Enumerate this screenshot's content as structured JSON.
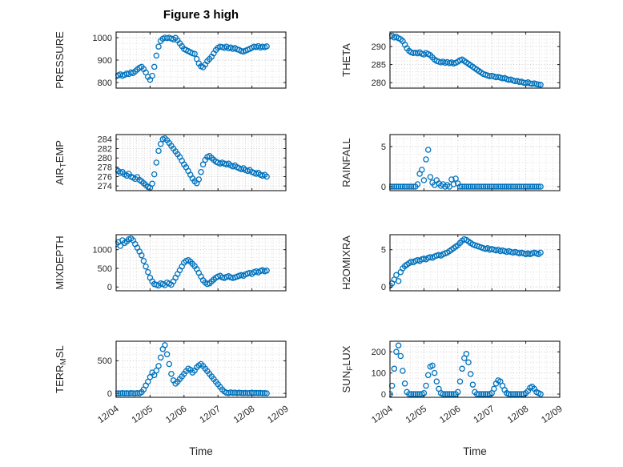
{
  "chart_data": {
    "type": "scatter",
    "figure_title": "Figure 3 high",
    "xlabel": "Time",
    "x_tick_labels": [
      "12/04",
      "12/05",
      "12/06",
      "12/07",
      "12/08",
      "12/09"
    ],
    "xlim": [
      0,
      5
    ],
    "x_start": 0,
    "x_step": 0.0625,
    "x_minor_step": 0.2,
    "grid": "on",
    "minor_grid": "on",
    "marker": "open-circle",
    "colors": {
      "marker": "#0072BD",
      "axis": "#151515",
      "text": "#262626",
      "grid_minor": "#dcdcdc",
      "grid_major": "#c6c6c6"
    },
    "plots": [
      {
        "name": "PRESSURE",
        "col": "left",
        "row": 0,
        "ylabel": "PRESSURE",
        "ylabel_parts": [
          {
            "text": "PRESSURE",
            "sub": false
          }
        ],
        "yticks": [
          800,
          900,
          1000
        ],
        "ylim": [
          775,
          1025
        ],
        "y_minor_step": 25,
        "values": [
          828,
          832,
          836,
          830,
          834,
          840,
          838,
          845,
          842,
          850,
          858,
          866,
          870,
          860,
          845,
          825,
          812,
          830,
          870,
          920,
          960,
          985,
          995,
          1000,
          998,
          1000,
          996,
          992,
          999,
          988,
          975,
          962,
          950,
          945,
          940,
          935,
          930,
          928,
          905,
          885,
          872,
          868,
          880,
          895,
          905,
          915,
          930,
          945,
          955,
          960,
          958,
          955,
          960,
          952,
          956,
          950,
          954,
          948,
          945,
          940,
          938,
          942,
          946,
          950,
          955,
          960,
          958,
          962,
          956,
          960,
          957,
          961
        ]
      },
      {
        "name": "AIR_TEMP",
        "col": "left",
        "row": 1,
        "ylabel": "AIR_TEMP",
        "ylabel_parts": [
          {
            "text": "AIR",
            "sub": false
          },
          {
            "text": "T",
            "sub": true
          },
          {
            "text": "EMP",
            "sub": false
          }
        ],
        "yticks": [
          274,
          276,
          278,
          280,
          282,
          284
        ],
        "ylim": [
          273,
          285
        ],
        "y_minor_step": 0.5,
        "values": [
          277.5,
          277.2,
          276.8,
          277.0,
          276.5,
          276.2,
          276.6,
          276.0,
          275.8,
          275.5,
          275.9,
          275.3,
          275.0,
          274.6,
          274.2,
          273.8,
          273.6,
          274.5,
          276.5,
          279.0,
          281.5,
          283.0,
          284.0,
          284.2,
          283.8,
          283.2,
          282.6,
          282.0,
          281.4,
          280.8,
          280.2,
          279.4,
          278.6,
          278.0,
          277.2,
          276.4,
          275.6,
          275.0,
          274.6,
          275.4,
          277.0,
          278.6,
          279.6,
          280.2,
          280.4,
          280.0,
          279.6,
          279.2,
          279.0,
          278.8,
          279.0,
          278.8,
          278.6,
          278.8,
          278.4,
          278.2,
          278.4,
          278.0,
          277.8,
          277.6,
          277.8,
          277.4,
          277.2,
          277.4,
          277.0,
          276.8,
          276.6,
          276.8,
          276.4,
          276.2,
          276.4,
          276.0
        ]
      },
      {
        "name": "MIXDEPTH",
        "col": "left",
        "row": 2,
        "ylabel": "MIXDEPTH",
        "ylabel_parts": [
          {
            "text": "MIXDEPTH",
            "sub": false
          }
        ],
        "yticks": [
          0,
          500,
          1000
        ],
        "ylim": [
          -100,
          1400
        ],
        "y_minor_step": 100,
        "values": [
          1150,
          1200,
          1100,
          1250,
          1180,
          1220,
          1280,
          1300,
          1250,
          1150,
          1050,
          950,
          850,
          700,
          550,
          400,
          250,
          150,
          80,
          60,
          40,
          100,
          80,
          50,
          120,
          90,
          60,
          150,
          250,
          350,
          450,
          550,
          650,
          700,
          720,
          680,
          620,
          560,
          480,
          380,
          280,
          180,
          120,
          80,
          100,
          150,
          200,
          250,
          280,
          300,
          260,
          240,
          270,
          290,
          260,
          240,
          260,
          280,
          300,
          320,
          300,
          340,
          360,
          380,
          350,
          400,
          420,
          390,
          430,
          450,
          420,
          440
        ]
      },
      {
        "name": "TERR_MSL",
        "col": "left",
        "row": 3,
        "ylabel": "TERR_MSL",
        "ylabel_parts": [
          {
            "text": "TERR",
            "sub": false
          },
          {
            "text": "M",
            "sub": true
          },
          {
            "text": "SL",
            "sub": false
          }
        ],
        "yticks": [
          0,
          500
        ],
        "ylim": [
          -60,
          800
        ],
        "y_minor_step": 100,
        "values": [
          0,
          2,
          0,
          5,
          0,
          3,
          0,
          4,
          2,
          0,
          5,
          0,
          20,
          60,
          120,
          180,
          250,
          320,
          280,
          350,
          420,
          550,
          680,
          740,
          600,
          450,
          300,
          200,
          150,
          180,
          220,
          260,
          300,
          340,
          380,
          360,
          320,
          350,
          400,
          430,
          450,
          420,
          380,
          340,
          300,
          260,
          220,
          180,
          140,
          100,
          60,
          30,
          10,
          5,
          15,
          8,
          12,
          5,
          10,
          6,
          4,
          8,
          3,
          6,
          10,
          5,
          8,
          4,
          7,
          3,
          5,
          2
        ]
      },
      {
        "name": "THETA",
        "col": "right",
        "row": 0,
        "ylabel": "THETA",
        "ylabel_parts": [
          {
            "text": "THETA",
            "sub": false
          }
        ],
        "yticks": [
          280,
          285,
          290
        ],
        "ylim": [
          278.5,
          294
        ],
        "y_minor_step": 1,
        "values": [
          292.8,
          293.0,
          292.5,
          292.7,
          292.3,
          292.0,
          291.5,
          290.5,
          289.5,
          288.8,
          288.4,
          288.2,
          288.3,
          288.1,
          288.4,
          288.0,
          287.8,
          288.2,
          287.9,
          287.6,
          287.0,
          286.4,
          286.0,
          285.8,
          285.6,
          285.8,
          285.5,
          285.7,
          285.4,
          285.6,
          285.3,
          285.5,
          285.8,
          286.2,
          286.4,
          286.0,
          285.6,
          285.2,
          284.8,
          284.4,
          284.0,
          283.6,
          283.2,
          282.8,
          282.4,
          282.2,
          282.0,
          281.8,
          281.9,
          281.7,
          281.5,
          281.6,
          281.4,
          281.2,
          281.3,
          281.0,
          280.8,
          280.9,
          280.6,
          280.4,
          280.5,
          280.2,
          280.3,
          280.0,
          279.9,
          280.1,
          279.8,
          279.7,
          279.8,
          279.6,
          279.5,
          279.4
        ]
      },
      {
        "name": "RAINFALL",
        "col": "right",
        "row": 1,
        "ylabel": "RAINFALL",
        "ylabel_parts": [
          {
            "text": "RAINFALL",
            "sub": false
          }
        ],
        "yticks": [
          0,
          5
        ],
        "ylim": [
          -0.5,
          6.5
        ],
        "y_minor_step": 1,
        "values": [
          0,
          0,
          0,
          0,
          0,
          0,
          0,
          0,
          0,
          0,
          0,
          0,
          0,
          0.3,
          1.6,
          2.1,
          0.8,
          3.4,
          4.6,
          1.2,
          0.5,
          0.2,
          0.8,
          0.4,
          0.1,
          0.3,
          0,
          0.2,
          0,
          0.9,
          0.3,
          1.0,
          0.4,
          0,
          0,
          0,
          0,
          0,
          0,
          0,
          0,
          0,
          0,
          0,
          0,
          0,
          0,
          0,
          0,
          0,
          0,
          0,
          0,
          0,
          0,
          0,
          0,
          0,
          0,
          0,
          0,
          0,
          0,
          0,
          0,
          0,
          0,
          0,
          0,
          0,
          0,
          0
        ]
      },
      {
        "name": "H2OMIXRA",
        "col": "right",
        "row": 2,
        "ylabel": "H2OMIXRA",
        "ylabel_parts": [
          {
            "text": "H2OMIXRA",
            "sub": false
          }
        ],
        "yticks": [
          0,
          5
        ],
        "ylim": [
          -0.5,
          7
        ],
        "y_minor_step": 1,
        "values": [
          0.2,
          0.5,
          1.0,
          1.6,
          0.8,
          2.0,
          2.5,
          2.8,
          3.0,
          3.2,
          3.4,
          3.3,
          3.5,
          3.6,
          3.5,
          3.7,
          3.8,
          3.7,
          3.9,
          4.0,
          3.9,
          4.1,
          4.2,
          4.3,
          4.2,
          4.4,
          4.5,
          4.6,
          4.8,
          5.0,
          5.2,
          5.4,
          5.6,
          5.9,
          6.2,
          6.4,
          6.3,
          6.1,
          5.9,
          5.7,
          5.6,
          5.5,
          5.4,
          5.3,
          5.2,
          5.1,
          5.2,
          5.0,
          5.1,
          5.0,
          4.9,
          5.0,
          4.8,
          4.9,
          4.8,
          4.7,
          4.8,
          4.7,
          4.6,
          4.7,
          4.6,
          4.5,
          4.6,
          4.5,
          4.4,
          4.5,
          4.4,
          4.5,
          4.6,
          4.5,
          4.4,
          4.6
        ]
      },
      {
        "name": "SUN_FLUX",
        "col": "right",
        "row": 3,
        "ylabel": "SUN_FLUX",
        "ylabel_parts": [
          {
            "text": "SUN",
            "sub": false
          },
          {
            "text": "F",
            "sub": true
          },
          {
            "text": "LUX",
            "sub": false
          }
        ],
        "yticks": [
          0,
          100,
          200
        ],
        "ylim": [
          -15,
          250
        ],
        "y_minor_step": 25,
        "values": [
          0,
          40,
          120,
          200,
          230,
          180,
          110,
          50,
          10,
          0,
          0,
          0,
          0,
          0,
          0,
          0,
          5,
          40,
          90,
          130,
          135,
          100,
          60,
          25,
          5,
          0,
          0,
          0,
          0,
          0,
          0,
          0,
          10,
          60,
          120,
          170,
          190,
          150,
          95,
          45,
          10,
          0,
          0,
          0,
          0,
          0,
          0,
          0,
          5,
          25,
          50,
          65,
          60,
          40,
          20,
          5,
          0,
          0,
          0,
          0,
          0,
          0,
          0,
          0,
          5,
          15,
          30,
          35,
          25,
          10,
          5,
          0
        ]
      }
    ]
  }
}
